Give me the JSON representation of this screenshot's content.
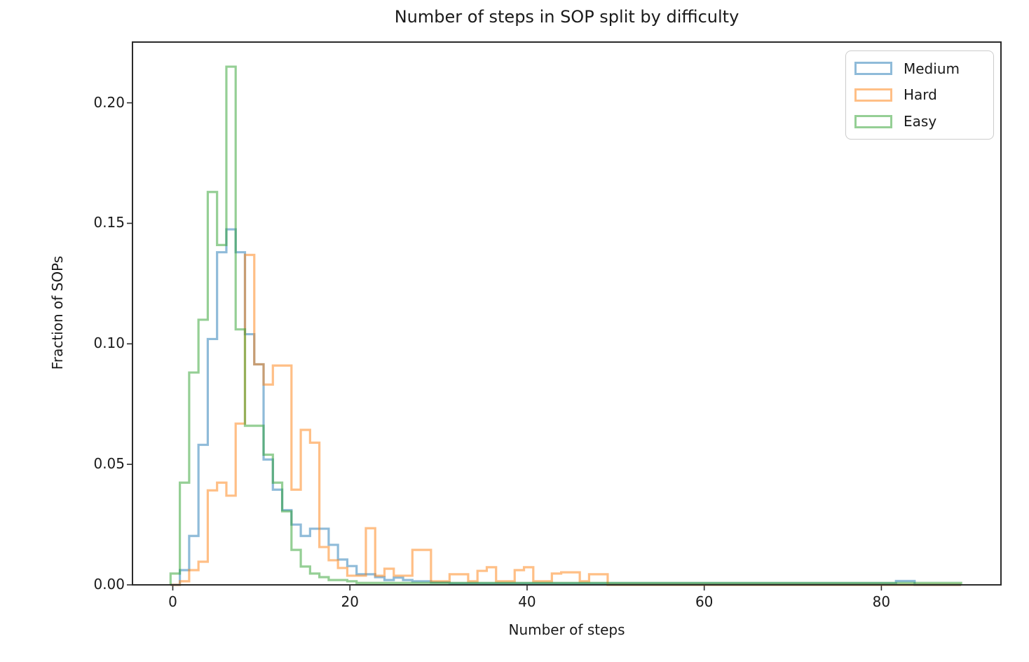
{
  "figure": {
    "background": "#ffffff",
    "text_color": "#1a1a1a",
    "spine_color": "#2b2b2b"
  },
  "chart_data": {
    "type": "step-histogram",
    "title": "Number of steps in SOP split by difficulty",
    "xlabel": "Number of steps",
    "ylabel": "Fraction of SOPs",
    "grid": false,
    "legend_position": "upper right",
    "xlim": [
      -4.55,
      93.5
    ],
    "ylim": [
      0,
      0.2252
    ],
    "x_ticks": [
      0,
      20,
      40,
      60,
      80
    ],
    "x_tick_labels": [
      "0",
      "20",
      "40",
      "60",
      "80"
    ],
    "y_ticks": [
      0.0,
      0.05,
      0.1,
      0.15,
      0.2
    ],
    "y_tick_labels": [
      "0.00",
      "0.05",
      "0.10",
      "0.15",
      "0.20"
    ],
    "bins": {
      "start": -0.25,
      "width": 1.05,
      "count": 85
    },
    "line_width": 3.2,
    "line_opacity": 0.5,
    "series": [
      {
        "name": "Medium",
        "color": "#1f77b4",
        "heights": [
          0,
          0.0061,
          0.0203,
          0.0581,
          0.102,
          0.138,
          0.1475,
          0.138,
          0.104,
          0.0915,
          0.052,
          0.0395,
          0.031,
          0.025,
          0.0203,
          0.0233,
          0.0233,
          0.0166,
          0.0105,
          0.0078,
          0.0044,
          0.0044,
          0.0032,
          0.002,
          0.003,
          0.002,
          0.0015,
          0.0015,
          0.001,
          0.001,
          0.0006,
          0.0006,
          0.0006,
          0.0006,
          0.0006,
          0.0006,
          0.0006,
          0.0006,
          0.0006,
          0.0006,
          0.0006,
          0.0006,
          0.0006,
          0.0006,
          0.0006,
          0.0006,
          0.0006,
          0.0006,
          0.0006,
          0.0006,
          0.0006,
          0.0006,
          0.0006,
          0.0006,
          0.0006,
          0.0006,
          0.0006,
          0.0006,
          0.0006,
          0.0006,
          0.0006,
          0.0006,
          0.0006,
          0.0006,
          0.0006,
          0.0006,
          0.0006,
          0.0006,
          0.0006,
          0.0006,
          0.0006,
          0.0006,
          0.0006,
          0.0006,
          0.0006,
          0.0006,
          0.0006,
          0.0006,
          0.0016,
          0.0016,
          0,
          0,
          0,
          0,
          0
        ]
      },
      {
        "name": "Hard",
        "color": "#ff7f0e",
        "heights": [
          0,
          0.0015,
          0.0061,
          0.0096,
          0.0392,
          0.0424,
          0.037,
          0.0669,
          0.1369,
          0.0915,
          0.0831,
          0.091,
          0.091,
          0.0395,
          0.0643,
          0.059,
          0.0157,
          0.0102,
          0.007,
          0.0038,
          0.0038,
          0.0235,
          0.0038,
          0.0067,
          0.0038,
          0.0038,
          0.0145,
          0.0145,
          0.0015,
          0.0015,
          0.0044,
          0.0044,
          0.0015,
          0.0058,
          0.0073,
          0.0015,
          0.0015,
          0.0061,
          0.0073,
          0.0015,
          0.0015,
          0.0047,
          0.0052,
          0.0052,
          0.0015,
          0.0044,
          0.0044,
          0,
          0,
          0,
          0,
          0,
          0,
          0,
          0,
          0,
          0,
          0,
          0,
          0,
          0,
          0,
          0,
          0,
          0,
          0,
          0,
          0,
          0,
          0,
          0,
          0,
          0,
          0,
          0,
          0,
          0,
          0,
          0,
          0,
          0,
          0,
          0,
          0,
          0
        ]
      },
      {
        "name": "Easy",
        "color": "#2ca02c",
        "heights": [
          0.0047,
          0.0424,
          0.0881,
          0.11,
          0.163,
          0.141,
          0.215,
          0.106,
          0.066,
          0.066,
          0.054,
          0.0424,
          0.0305,
          0.0145,
          0.0076,
          0.0047,
          0.0032,
          0.002,
          0.002,
          0.0015,
          0.0008,
          0.0008,
          0.0008,
          0.0008,
          0.0008,
          0.0008,
          0.0008,
          0.0008,
          0.0008,
          0.0008,
          0.0008,
          0.0008,
          0.0008,
          0.0008,
          0.0008,
          0.0008,
          0.0008,
          0.0008,
          0.0008,
          0.0008,
          0.0008,
          0.0008,
          0.0008,
          0.0008,
          0.0008,
          0.0008,
          0.0008,
          0.0008,
          0.0008,
          0.0008,
          0.0008,
          0.0008,
          0.0008,
          0.0008,
          0.0008,
          0.0008,
          0.0008,
          0.0008,
          0.0008,
          0.0008,
          0.0008,
          0.0008,
          0.0008,
          0.0008,
          0.0008,
          0.0008,
          0.0008,
          0.0008,
          0.0008,
          0.0008,
          0.0008,
          0.0008,
          0.0008,
          0.0008,
          0.0008,
          0.0008,
          0.0008,
          0.0008,
          0.0008,
          0.0008,
          0.0008,
          0.0008,
          0.0008,
          0.0008,
          0.0008
        ]
      }
    ]
  },
  "legend": {
    "items": [
      {
        "label": "Medium",
        "color": "#1f77b4"
      },
      {
        "label": "Hard",
        "color": "#ff7f0e"
      },
      {
        "label": "Easy",
        "color": "#2ca02c"
      }
    ]
  }
}
